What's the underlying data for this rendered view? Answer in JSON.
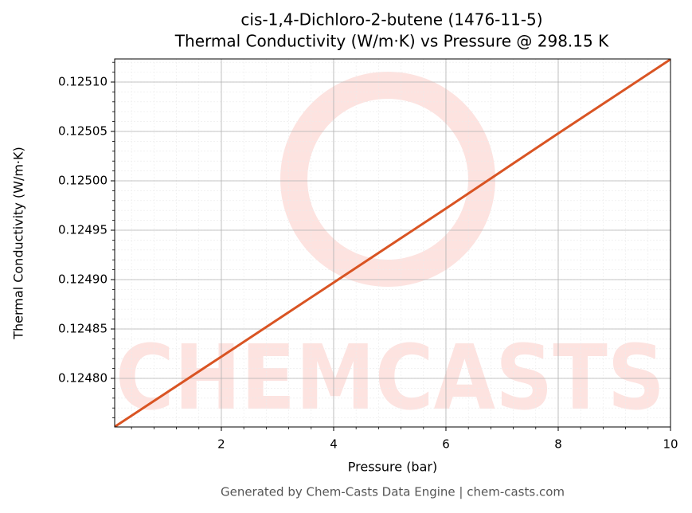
{
  "chart_data": {
    "type": "line",
    "title": "cis-1,4-Dichloro-2-butene (1476-11-5)",
    "subtitle": "Thermal Conductivity (W/m·K) vs Pressure @ 298.15 K",
    "x_label": "Pressure (bar)",
    "y_label": "Thermal Conductivity (W/m·K)",
    "footer": "Generated by Chem-Casts Data Engine | chem-casts.com",
    "watermark": "CHEMCASTS",
    "x": [
      0.1,
      2,
      4,
      6,
      8,
      10
    ],
    "series": [
      {
        "name": "Thermal Conductivity",
        "color": "#d95423",
        "values": [
          0.124751,
          0.124822,
          0.124897,
          0.124972,
          0.125048,
          0.125123
        ]
      }
    ],
    "xlim": [
      0.1,
      10
    ],
    "ylim": [
      0.1247508,
      0.1251234
    ],
    "xticks": [
      2,
      4,
      6,
      8,
      10
    ],
    "yticks": [
      {
        "value": 0.1248,
        "label": "0.12480"
      },
      {
        "value": 0.12485,
        "label": "0.12485"
      },
      {
        "value": 0.1249,
        "label": "0.12490"
      },
      {
        "value": 0.12495,
        "label": "0.12495"
      },
      {
        "value": 0.125,
        "label": "0.12500"
      },
      {
        "value": 0.12505,
        "label": "0.12505"
      },
      {
        "value": 0.1251,
        "label": "0.12510"
      }
    ],
    "grid": true
  }
}
